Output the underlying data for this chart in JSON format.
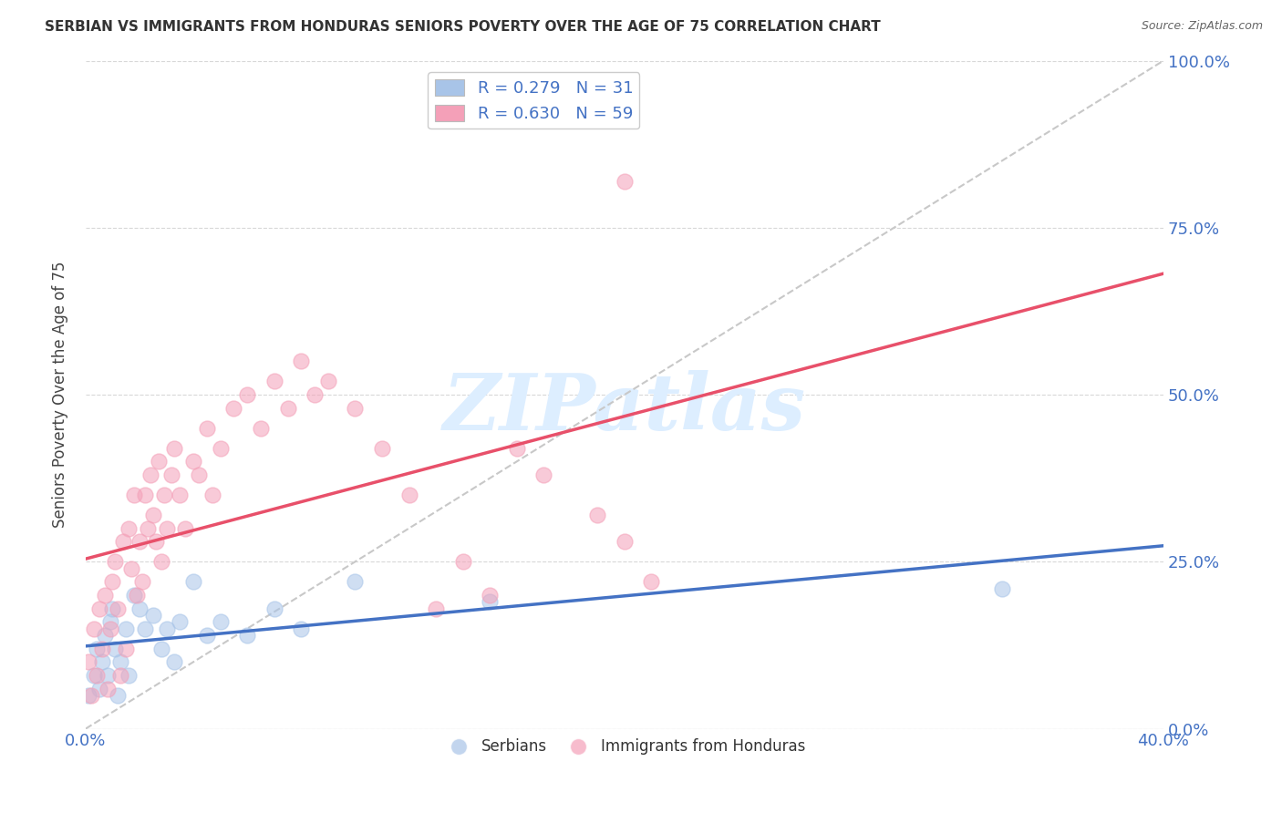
{
  "title": "SERBIAN VS IMMIGRANTS FROM HONDURAS SENIORS POVERTY OVER THE AGE OF 75 CORRELATION CHART",
  "source": "Source: ZipAtlas.com",
  "ylabel": "Seniors Poverty Over the Age of 75",
  "xlim": [
    0.0,
    0.4
  ],
  "ylim": [
    0.0,
    1.0
  ],
  "ytick_values": [
    0.0,
    0.25,
    0.5,
    0.75,
    1.0
  ],
  "xtick_values": [
    0.0,
    0.4
  ],
  "serbian_R": 0.279,
  "serbian_N": 31,
  "honduras_R": 0.63,
  "honduras_N": 59,
  "serbian_color": "#a8c4e8",
  "honduras_color": "#f4a0b8",
  "serbian_line_color": "#4472c4",
  "honduras_line_color": "#e8506a",
  "diagonal_color": "#c8c8c8",
  "watermark_text": "ZIPatlas",
  "watermark_color": "#ddeeff",
  "background_color": "#ffffff",
  "legend_serbian_label": "R = 0.279   N = 31",
  "legend_honduras_label": "R = 0.630   N = 59",
  "legend_group1": "Serbians",
  "legend_group2": "Immigrants from Honduras",
  "serbian_x": [
    0.001,
    0.003,
    0.004,
    0.005,
    0.006,
    0.007,
    0.008,
    0.009,
    0.01,
    0.011,
    0.012,
    0.013,
    0.015,
    0.016,
    0.018,
    0.02,
    0.022,
    0.025,
    0.028,
    0.03,
    0.033,
    0.035,
    0.04,
    0.045,
    0.05,
    0.06,
    0.07,
    0.08,
    0.1,
    0.15,
    0.34
  ],
  "serbian_y": [
    0.05,
    0.08,
    0.12,
    0.06,
    0.1,
    0.14,
    0.08,
    0.16,
    0.18,
    0.12,
    0.05,
    0.1,
    0.15,
    0.08,
    0.2,
    0.18,
    0.15,
    0.17,
    0.12,
    0.15,
    0.1,
    0.16,
    0.22,
    0.14,
    0.16,
    0.14,
    0.18,
    0.15,
    0.22,
    0.19,
    0.21
  ],
  "honduras_x": [
    0.001,
    0.002,
    0.003,
    0.004,
    0.005,
    0.006,
    0.007,
    0.008,
    0.009,
    0.01,
    0.011,
    0.012,
    0.013,
    0.014,
    0.015,
    0.016,
    0.017,
    0.018,
    0.019,
    0.02,
    0.021,
    0.022,
    0.023,
    0.024,
    0.025,
    0.026,
    0.027,
    0.028,
    0.029,
    0.03,
    0.032,
    0.033,
    0.035,
    0.037,
    0.04,
    0.042,
    0.045,
    0.047,
    0.05,
    0.055,
    0.06,
    0.065,
    0.07,
    0.075,
    0.08,
    0.085,
    0.09,
    0.1,
    0.11,
    0.12,
    0.13,
    0.14,
    0.15,
    0.16,
    0.17,
    0.19,
    0.2,
    0.21,
    0.2
  ],
  "honduras_y": [
    0.1,
    0.05,
    0.15,
    0.08,
    0.18,
    0.12,
    0.2,
    0.06,
    0.15,
    0.22,
    0.25,
    0.18,
    0.08,
    0.28,
    0.12,
    0.3,
    0.24,
    0.35,
    0.2,
    0.28,
    0.22,
    0.35,
    0.3,
    0.38,
    0.32,
    0.28,
    0.4,
    0.25,
    0.35,
    0.3,
    0.38,
    0.42,
    0.35,
    0.3,
    0.4,
    0.38,
    0.45,
    0.35,
    0.42,
    0.48,
    0.5,
    0.45,
    0.52,
    0.48,
    0.55,
    0.5,
    0.52,
    0.48,
    0.42,
    0.35,
    0.18,
    0.25,
    0.2,
    0.42,
    0.38,
    0.32,
    0.28,
    0.22,
    0.82
  ]
}
